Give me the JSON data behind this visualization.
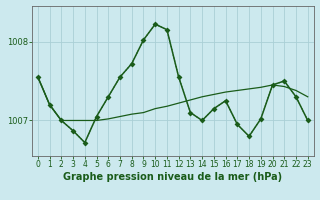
{
  "title": "Graphe pression niveau de la mer (hPa)",
  "background_color": "#cce9ee",
  "line_color": "#1a5c1a",
  "grid_color": "#aacfd6",
  "ylim": [
    1006.55,
    1008.45
  ],
  "yticks": [
    1007,
    1008
  ],
  "title_fontsize": 7,
  "tick_fontsize": 5.5,
  "s_trend": [
    1007.55,
    1007.2,
    1007.0,
    1007.0,
    1007.0,
    1007.0,
    1007.02,
    1007.05,
    1007.08,
    1007.1,
    1007.15,
    1007.18,
    1007.22,
    1007.26,
    1007.3,
    1007.33,
    1007.36,
    1007.38,
    1007.4,
    1007.42,
    1007.45,
    1007.43,
    1007.38,
    1007.3
  ],
  "s_dot": [
    1007.55,
    1007.2,
    1007.0,
    1006.87,
    1006.72,
    1007.05,
    1007.3,
    1007.55,
    1007.72,
    1008.02,
    1008.22,
    1008.15,
    1007.55,
    1007.1,
    1007.0,
    1007.15,
    1007.25,
    1006.95,
    1006.8,
    1007.02,
    1007.45,
    1007.5,
    1007.3,
    1007.0
  ],
  "s_diamond": [
    1007.55,
    1007.2,
    1007.0,
    1006.87,
    1006.72,
    1007.05,
    1007.3,
    1007.55,
    1007.72,
    1008.02,
    1008.22,
    1008.15,
    1007.55,
    1007.1,
    1007.0,
    1007.15,
    1007.25,
    1006.95,
    1006.8,
    1007.02,
    1007.45,
    1007.5,
    1007.3,
    1007.0
  ]
}
